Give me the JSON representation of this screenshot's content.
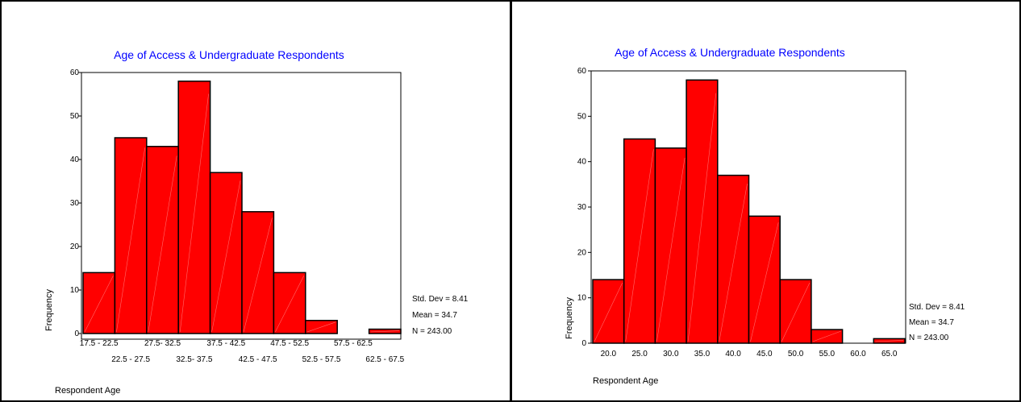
{
  "colors": {
    "bar_fill": "#ff0000",
    "bar_stroke": "#000000",
    "title": "#0000ff",
    "axis": "#000000",
    "background": "#ffffff"
  },
  "chart_data": [
    {
      "type": "bar",
      "title": "Age of Access & Undergraduate Respondents",
      "xlabel": "Respondent Age",
      "ylabel": "Frequency",
      "categories": [
        "17.5 - 22.5",
        "22.5 - 27.5",
        "27.5- 32.5",
        "32.5- 37.5",
        "37.5 - 42.5",
        "42.5 - 47.5",
        "47.5 - 52.5",
        "52.5 - 57.5",
        "57.5 - 62.5",
        "62.5 - 67.5"
      ],
      "values": [
        14,
        45,
        43,
        58,
        37,
        28,
        14,
        3,
        0,
        1
      ],
      "ylim": [
        0,
        60
      ],
      "yticks": [
        "0",
        "10",
        "20",
        "30",
        "40",
        "50",
        "60"
      ],
      "stats": [
        "Std. Dev = 8.41",
        "Mean = 34.7",
        "N = 243.00"
      ]
    },
    {
      "type": "bar",
      "title": "Age of Access & Undergraduate Respondents",
      "xlabel": "Respondent Age",
      "ylabel": "Frequency",
      "categories": [
        "20.0",
        "25.0",
        "30.0",
        "35.0",
        "40.0",
        "45.0",
        "50.0",
        "55.0",
        "60.0",
        "65.0"
      ],
      "values": [
        14,
        45,
        43,
        58,
        37,
        28,
        14,
        3,
        0,
        1
      ],
      "ylim": [
        0,
        60
      ],
      "yticks": [
        "0",
        "10",
        "20",
        "30",
        "40",
        "50",
        "60"
      ],
      "stats": [
        "Std. Dev = 8.41",
        "Mean = 34.7",
        "N = 243.00"
      ]
    }
  ]
}
